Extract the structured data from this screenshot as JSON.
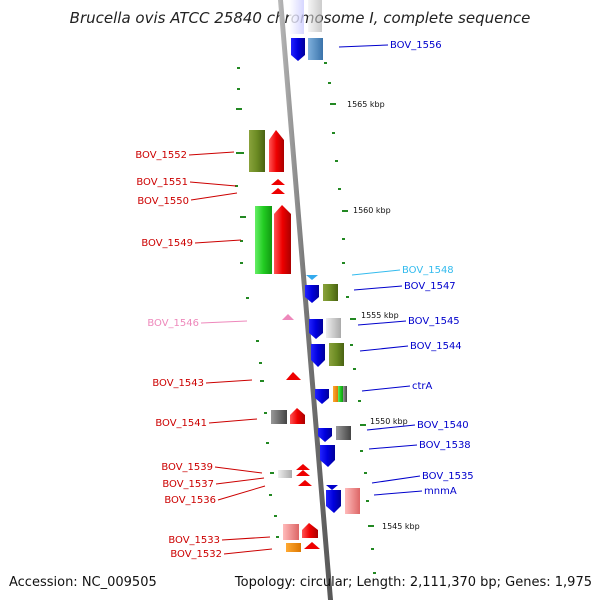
{
  "title": "Brucella ovis ATCC 25840 chromosome I, complete sequence",
  "accession": "Accession: NC_009505",
  "topology": "Topology: circular; Length: 2,111,370 bp; Genes: 1,975",
  "scale_labels": [
    "1565 kbp",
    "1560 kbp",
    "1555 kbp",
    "1550 kbp",
    "1545 kbp"
  ],
  "genes_right": [
    {
      "name": "BOV_1556",
      "color": "#0000cc"
    },
    {
      "name": "BOV_1548",
      "color": "#33bbee"
    },
    {
      "name": "BOV_1547",
      "color": "#0000cc"
    },
    {
      "name": "BOV_1545",
      "color": "#0000cc"
    },
    {
      "name": "BOV_1544",
      "color": "#0000cc"
    },
    {
      "name": "ctrA",
      "color": "#0000cc"
    },
    {
      "name": "BOV_1540",
      "color": "#0000cc"
    },
    {
      "name": "BOV_1538",
      "color": "#0000cc"
    },
    {
      "name": "BOV_1535",
      "color": "#0000cc"
    },
    {
      "name": "mnmA",
      "color": "#0000cc"
    }
  ],
  "genes_left": [
    {
      "name": "BOV_1552",
      "color": "#cc0000"
    },
    {
      "name": "BOV_1551",
      "color": "#cc0000"
    },
    {
      "name": "BOV_1550",
      "color": "#cc0000"
    },
    {
      "name": "BOV_1549",
      "color": "#cc0000"
    },
    {
      "name": "BOV_1546",
      "color": "#ee88bb"
    },
    {
      "name": "BOV_1543",
      "color": "#cc0000"
    },
    {
      "name": "BOV_1541",
      "color": "#cc0000"
    },
    {
      "name": "BOV_1539",
      "color": "#cc0000"
    },
    {
      "name": "BOV_1537",
      "color": "#cc0000"
    },
    {
      "name": "BOV_1536",
      "color": "#cc0000"
    },
    {
      "name": "BOV_1533",
      "color": "#cc0000"
    },
    {
      "name": "BOV_1532",
      "color": "#cc0000"
    }
  ]
}
